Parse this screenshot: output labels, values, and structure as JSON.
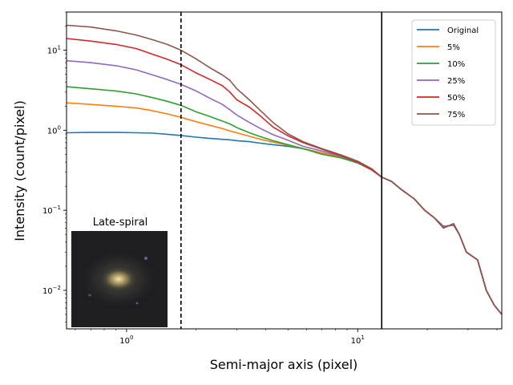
{
  "chart_data": {
    "type": "line",
    "xscale": "log",
    "yscale": "log",
    "xlim": [
      0.55,
      42
    ],
    "ylim": [
      0.0033,
      30
    ],
    "xlabel": "Semi-major axis (pixel)",
    "ylabel": "Intensity (count/pixel)",
    "grid": false,
    "legend_position": "top-right",
    "x_ticks": [
      {
        "value": 1,
        "label": "10",
        "exp": "0"
      },
      {
        "value": 10,
        "label": "10",
        "exp": "1"
      }
    ],
    "y_ticks": [
      {
        "value": 0.01,
        "label": "10",
        "exp": "−2"
      },
      {
        "value": 0.1,
        "label": "10",
        "exp": "−1"
      },
      {
        "value": 1,
        "label": "10",
        "exp": "0"
      },
      {
        "value": 10,
        "label": "10",
        "exp": "1"
      }
    ],
    "vlines": [
      {
        "x": 1.72,
        "style": "dashed",
        "color": "#000000"
      },
      {
        "x": 12.7,
        "style": "solid",
        "color": "#000000"
      }
    ],
    "inset": {
      "title": "Late-spiral"
    },
    "x": [
      0.55,
      0.7,
      0.9,
      1.1,
      1.3,
      1.5,
      1.72,
      2.0,
      2.3,
      2.6,
      2.8,
      3.0,
      3.4,
      3.8,
      4.3,
      5.0,
      5.8,
      7.0,
      8.5,
      10.0,
      11.5,
      12.7,
      14.0,
      15.5,
      17.5,
      19.5,
      21.5,
      23.5,
      26.0,
      27.5,
      29.5,
      33.0,
      36.0,
      39.0,
      42.0
    ],
    "series": [
      {
        "name": "Original",
        "color": "#1f77b4",
        "values": [
          0.93,
          0.94,
          0.94,
          0.93,
          0.92,
          0.89,
          0.86,
          0.82,
          0.79,
          0.77,
          0.76,
          0.74,
          0.72,
          0.69,
          0.66,
          0.63,
          0.59,
          0.52,
          0.46,
          0.39,
          0.32,
          0.26,
          0.23,
          0.18,
          0.14,
          0.1,
          0.08,
          0.063,
          0.065,
          0.05,
          0.03,
          0.024,
          0.01,
          0.0065,
          0.005
        ]
      },
      {
        "name": "5%",
        "color": "#ff7f0e",
        "values": [
          2.2,
          2.1,
          2.0,
          1.9,
          1.75,
          1.6,
          1.45,
          1.28,
          1.15,
          1.05,
          0.98,
          0.93,
          0.84,
          0.77,
          0.71,
          0.65,
          0.59,
          0.52,
          0.46,
          0.39,
          0.32,
          0.26,
          0.23,
          0.18,
          0.14,
          0.1,
          0.08,
          0.063,
          0.065,
          0.05,
          0.03,
          0.024,
          0.01,
          0.0065,
          0.005
        ]
      },
      {
        "name": "10%",
        "color": "#2ca02c",
        "values": [
          3.5,
          3.3,
          3.1,
          2.85,
          2.55,
          2.3,
          2.05,
          1.7,
          1.48,
          1.3,
          1.2,
          1.08,
          0.93,
          0.83,
          0.74,
          0.66,
          0.59,
          0.5,
          0.45,
          0.39,
          0.32,
          0.26,
          0.23,
          0.18,
          0.14,
          0.1,
          0.08,
          0.063,
          0.065,
          0.05,
          0.03,
          0.024,
          0.01,
          0.0065,
          0.005
        ]
      },
      {
        "name": "25%",
        "color": "#9467bd",
        "values": [
          7.4,
          7.0,
          6.4,
          5.7,
          4.9,
          4.3,
          3.75,
          3.1,
          2.5,
          2.1,
          1.8,
          1.55,
          1.25,
          1.05,
          0.88,
          0.75,
          0.63,
          0.55,
          0.47,
          0.4,
          0.32,
          0.26,
          0.23,
          0.18,
          0.14,
          0.1,
          0.08,
          0.063,
          0.065,
          0.05,
          0.03,
          0.024,
          0.01,
          0.0065,
          0.005
        ]
      },
      {
        "name": "50%",
        "color": "#d62728",
        "values": [
          14.0,
          13.0,
          11.8,
          10.5,
          8.9,
          7.7,
          6.6,
          5.2,
          4.3,
          3.6,
          3.0,
          2.4,
          1.95,
          1.5,
          1.1,
          0.85,
          0.7,
          0.58,
          0.48,
          0.4,
          0.32,
          0.26,
          0.23,
          0.18,
          0.14,
          0.1,
          0.08,
          0.06,
          0.068,
          0.05,
          0.03,
          0.024,
          0.01,
          0.0065,
          0.005
        ]
      },
      {
        "name": "75%",
        "color": "#8c564b",
        "values": [
          20.5,
          19.5,
          17.5,
          15.5,
          13.5,
          11.8,
          10.0,
          7.8,
          6.0,
          4.9,
          4.2,
          3.3,
          2.4,
          1.75,
          1.25,
          0.9,
          0.72,
          0.59,
          0.49,
          0.41,
          0.33,
          0.26,
          0.23,
          0.18,
          0.14,
          0.1,
          0.08,
          0.06,
          0.068,
          0.05,
          0.03,
          0.024,
          0.01,
          0.0065,
          0.005
        ]
      }
    ]
  }
}
